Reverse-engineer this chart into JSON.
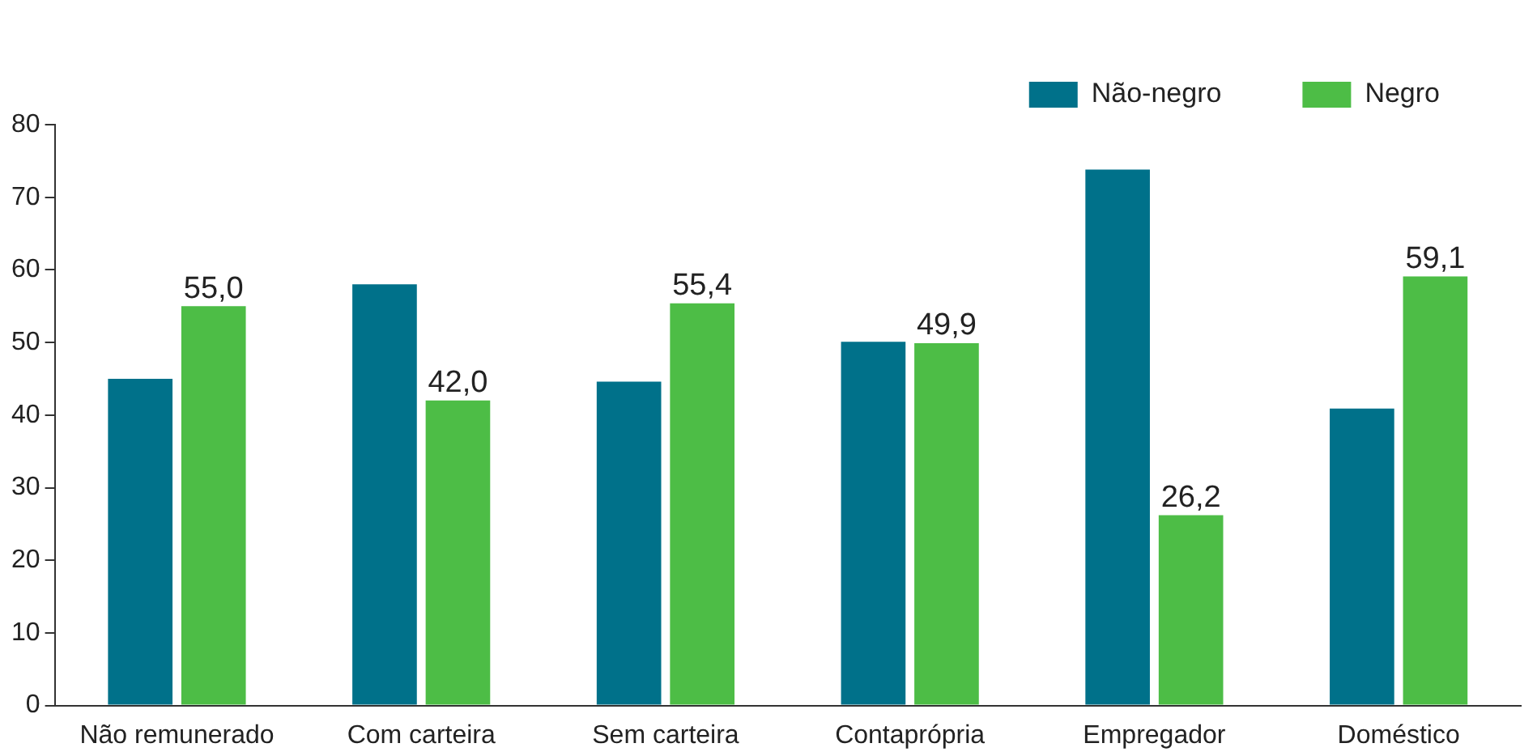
{
  "chart_data": {
    "type": "bar",
    "categories": [
      "Não remunerado",
      "Com carteira",
      "Sem carteira",
      "Contaprópria",
      "Empregador",
      "Doméstico"
    ],
    "series": [
      {
        "name": "Não-negro",
        "color": "#00718a",
        "values": [
          45.0,
          58.0,
          44.6,
          50.1,
          73.8,
          40.9
        ]
      },
      {
        "name": "Negro",
        "color": "#4dbd46",
        "values": [
          55.0,
          42.0,
          55.4,
          49.9,
          26.2,
          59.1
        ],
        "value_labels": [
          "55,0",
          "42,0",
          "55,4",
          "49,9",
          "26,2",
          "59,1"
        ]
      }
    ],
    "ylim": [
      0,
      80
    ],
    "yticks": [
      0,
      10,
      20,
      30,
      40,
      50,
      60,
      70,
      80
    ],
    "grid": false,
    "legend": "top right"
  }
}
